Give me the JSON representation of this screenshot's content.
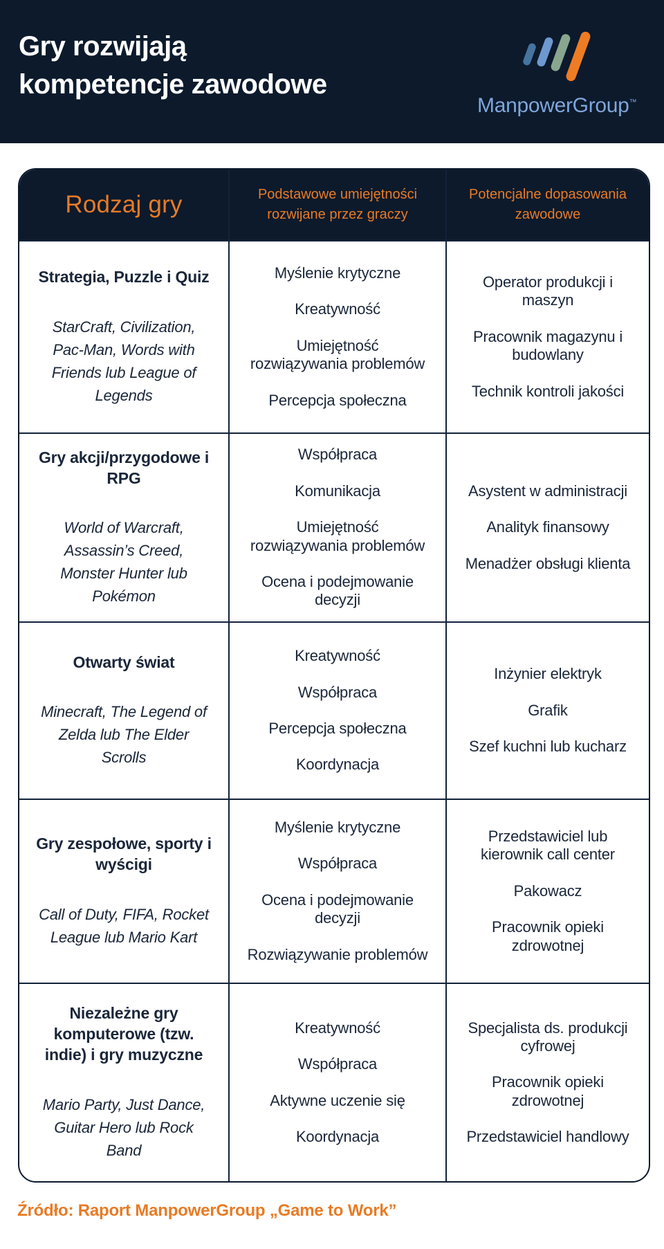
{
  "page": {
    "title_line1": "Gry rozwijają",
    "title_line2": "kompetencje zawodowe",
    "source": "Źródło: Raport ManpowerGroup „Game to Work”",
    "colors": {
      "navy": "#0c1a2c",
      "orange": "#e87b25",
      "body_text": "#1a2639",
      "logo_text_blue": "#7fa6da"
    }
  },
  "logo": {
    "wordmark": "ManpowerGroup",
    "trademark": "™",
    "bars": [
      {
        "name": "bar-small-dark-blue",
        "color": "#47739f"
      },
      {
        "name": "bar-light-blue",
        "color": "#6e98cf"
      },
      {
        "name": "bar-sage-green",
        "color": "#89a78e"
      },
      {
        "name": "bar-large-orange",
        "color": "#ee7c24"
      }
    ]
  },
  "table": {
    "headers": {
      "col1": "Rodzaj gry",
      "col2": "Podstawowe umiejętności rozwijane przez graczy",
      "col3": "Potencjalne dopasowania zawodowe"
    },
    "rows": [
      {
        "genre": "Strategia, Puzzle i Quiz",
        "examples": "StarCraft, Civilization, Pac-Man, Words with Friends lub League of Legends",
        "skills": [
          "Myślenie krytyczne",
          "Kreatywność",
          "Umiejętność rozwiązywania problemów",
          "Percepcja społeczna"
        ],
        "jobs": [
          "Operator produkcji i maszyn",
          "Pracownik magazynu i budowlany",
          "Technik kontroli jakości"
        ]
      },
      {
        "genre": "Gry akcji/przygodowe i RPG",
        "examples": "World of Warcraft, Assassin’s Creed, Monster Hunter lub Pokémon",
        "skills": [
          "Współpraca",
          "Komunikacja",
          "Umiejętność rozwiązywania problemów",
          "Ocena i podejmowanie decyzji"
        ],
        "jobs": [
          "Asystent w administracji",
          "Analityk finansowy",
          "Menadżer obsługi klienta"
        ]
      },
      {
        "genre": "Otwarty świat",
        "examples": "Minecraft, The Legend of Zelda lub The Elder Scrolls",
        "skills": [
          "Kreatywność",
          "Współpraca",
          "Percepcja społeczna",
          "Koordynacja"
        ],
        "jobs": [
          "Inżynier elektryk",
          "Grafik",
          "Szef kuchni lub kucharz"
        ]
      },
      {
        "genre": "Gry zespołowe, sporty i wyścigi",
        "examples": "Call of Duty, FIFA, Rocket League lub Mario Kart",
        "skills": [
          "Myślenie krytyczne",
          "Współpraca",
          "Ocena i podejmowanie decyzji",
          "Rozwiązywanie problemów"
        ],
        "jobs": [
          "Przedstawiciel lub kierownik call center",
          "Pakowacz",
          "Pracownik opieki zdrowotnej"
        ]
      },
      {
        "genre": "Niezależne gry komputerowe (tzw. indie) i gry muzyczne",
        "examples": "Mario Party, Just Dance, Guitar Hero lub Rock Band",
        "skills": [
          "Kreatywność",
          "Współpraca",
          "Aktywne uczenie się",
          "Koordynacja"
        ],
        "jobs": [
          "Specjalista ds. produkcji cyfrowej",
          "Pracownik opieki zdrowotnej",
          "Przedstawiciel handlowy"
        ]
      }
    ]
  }
}
